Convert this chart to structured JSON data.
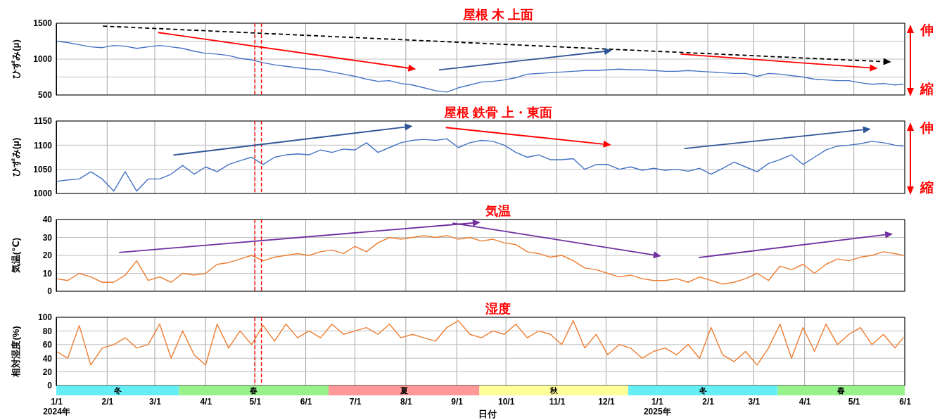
{
  "chart_data": [
    {
      "type": "line",
      "title": "屋根 木 上面",
      "ylabel": "ひずみ(μ)",
      "tick_labels": "y",
      "grid": true,
      "xlim": [
        "2024-01-01",
        "2025-06-01"
      ],
      "xticks": [
        {
          "value": "2024-01-01",
          "label": null
        },
        {
          "value": "2024-02-01",
          "label": null
        },
        {
          "value": "2024-03-01",
          "label": null
        },
        {
          "value": "2024-04-01",
          "label": null
        },
        {
          "value": "2024-05-01",
          "label": null
        },
        {
          "value": "2024-06-01",
          "label": null
        },
        {
          "value": "2024-07-01",
          "label": null
        },
        {
          "value": "2024-08-01",
          "label": null
        },
        {
          "value": "2024-09-01",
          "label": null
        },
        {
          "value": "2024-10-01",
          "label": null
        },
        {
          "value": "2024-11-01",
          "label": null
        },
        {
          "value": "2024-12-01",
          "label": null
        },
        {
          "value": "2025-01-01",
          "label": null
        },
        {
          "value": "2025-02-01",
          "label": null
        },
        {
          "value": "2025-03-01",
          "label": null
        },
        {
          "value": "2025-04-01",
          "label": null
        },
        {
          "value": "2025-05-01",
          "label": null
        },
        {
          "value": "2025-06-01",
          "label": null
        }
      ],
      "ylim": [
        500,
        1500
      ],
      "yticks": [
        500,
        {
          "value": 750,
          "label": null
        },
        1000,
        {
          "value": 1250,
          "label": null
        },
        1500
      ],
      "x": [
        "2024-01-01",
        "2024-01-08",
        "2024-01-15",
        "2024-01-22",
        "2024-01-29",
        "2024-02-05",
        "2024-02-12",
        "2024-02-19",
        "2024-02-26",
        "2024-03-04",
        "2024-03-11",
        "2024-03-18",
        "2024-03-25",
        "2024-04-01",
        "2024-04-08",
        "2024-04-15",
        "2024-04-22",
        "2024-04-29",
        "2024-05-06",
        "2024-05-13",
        "2024-05-20",
        "2024-05-27",
        "2024-06-03",
        "2024-06-10",
        "2024-06-17",
        "2024-06-24",
        "2024-07-01",
        "2024-07-08",
        "2024-07-15",
        "2024-07-22",
        "2024-07-29",
        "2024-08-05",
        "2024-08-12",
        "2024-08-19",
        "2024-08-26",
        "2024-09-02",
        "2024-09-09",
        "2024-09-16",
        "2024-09-23",
        "2024-09-30",
        "2024-10-07",
        "2024-10-14",
        "2024-10-21",
        "2024-10-28",
        "2024-11-04",
        "2024-11-11",
        "2024-11-18",
        "2024-11-25",
        "2024-12-02",
        "2024-12-09",
        "2024-12-16",
        "2024-12-23",
        "2024-12-30",
        "2025-01-06",
        "2025-01-13",
        "2025-01-20",
        "2025-01-27",
        "2025-02-03",
        "2025-02-10",
        "2025-02-17",
        "2025-02-24",
        "2025-03-03",
        "2025-03-10",
        "2025-03-17",
        "2025-03-24",
        "2025-03-31",
        "2025-04-07",
        "2025-04-14",
        "2025-04-21",
        "2025-04-28",
        "2025-05-05",
        "2025-05-12",
        "2025-05-19",
        "2025-05-26",
        "2025-05-31"
      ],
      "series": [
        {
          "color": "#4472c4",
          "values": [
            1250,
            1230,
            1200,
            1170,
            1160,
            1190,
            1180,
            1150,
            1170,
            1190,
            1170,
            1150,
            1110,
            1080,
            1070,
            1050,
            1010,
            990,
            950,
            920,
            900,
            880,
            860,
            850,
            820,
            790,
            760,
            720,
            690,
            700,
            660,
            640,
            600,
            560,
            540,
            600,
            640,
            680,
            690,
            710,
            740,
            790,
            800,
            810,
            820,
            830,
            840,
            840,
            850,
            860,
            850,
            850,
            840,
            830,
            830,
            840,
            830,
            820,
            810,
            800,
            800,
            760,
            800,
            790,
            770,
            750,
            720,
            710,
            700,
            700,
            670,
            650,
            660,
            640,
            650
          ]
        }
      ],
      "ref_lines": [
        {
          "axis": "x",
          "value": "2024-05-01",
          "color": "#ff0000",
          "line_style": "dashed"
        },
        {
          "axis": "x",
          "value": "2024-05-05",
          "color": "#ff0000",
          "line_style": "dashed"
        }
      ],
      "annotations": [
        "伸",
        "縮"
      ]
    },
    {
      "type": "line",
      "title": "屋根 鉄骨 上・東面",
      "ylabel": "ひずみ(μ)",
      "tick_labels": "y",
      "grid": true,
      "xlim": [
        "2024-01-01",
        "2025-06-01"
      ],
      "xticks": [
        {
          "value": "2024-01-01",
          "label": null
        },
        {
          "value": "2024-02-01",
          "label": null
        },
        {
          "value": "2024-03-01",
          "label": null
        },
        {
          "value": "2024-04-01",
          "label": null
        },
        {
          "value": "2024-05-01",
          "label": null
        },
        {
          "value": "2024-06-01",
          "label": null
        },
        {
          "value": "2024-07-01",
          "label": null
        },
        {
          "value": "2024-08-01",
          "label": null
        },
        {
          "value": "2024-09-01",
          "label": null
        },
        {
          "value": "2024-10-01",
          "label": null
        },
        {
          "value": "2024-11-01",
          "label": null
        },
        {
          "value": "2024-12-01",
          "label": null
        },
        {
          "value": "2025-01-01",
          "label": null
        },
        {
          "value": "2025-02-01",
          "label": null
        },
        {
          "value": "2025-03-01",
          "label": null
        },
        {
          "value": "2025-04-01",
          "label": null
        },
        {
          "value": "2025-05-01",
          "label": null
        },
        {
          "value": "2025-06-01",
          "label": null
        }
      ],
      "ylim": [
        1000,
        1150
      ],
      "yticks": [
        1000,
        1050,
        1100,
        1150
      ],
      "x": [
        "2024-01-01",
        "2024-01-08",
        "2024-01-15",
        "2024-01-22",
        "2024-01-29",
        "2024-02-05",
        "2024-02-12",
        "2024-02-19",
        "2024-02-26",
        "2024-03-04",
        "2024-03-11",
        "2024-03-18",
        "2024-03-25",
        "2024-04-01",
        "2024-04-08",
        "2024-04-15",
        "2024-04-22",
        "2024-04-29",
        "2024-05-06",
        "2024-05-13",
        "2024-05-20",
        "2024-05-27",
        "2024-06-03",
        "2024-06-10",
        "2024-06-17",
        "2024-06-24",
        "2024-07-01",
        "2024-07-08",
        "2024-07-15",
        "2024-07-22",
        "2024-07-29",
        "2024-08-05",
        "2024-08-12",
        "2024-08-19",
        "2024-08-26",
        "2024-09-02",
        "2024-09-09",
        "2024-09-16",
        "2024-09-23",
        "2024-09-30",
        "2024-10-07",
        "2024-10-14",
        "2024-10-21",
        "2024-10-28",
        "2024-11-04",
        "2024-11-11",
        "2024-11-18",
        "2024-11-25",
        "2024-12-02",
        "2024-12-09",
        "2024-12-16",
        "2024-12-23",
        "2024-12-30",
        "2025-01-06",
        "2025-01-13",
        "2025-01-20",
        "2025-01-27",
        "2025-02-03",
        "2025-02-10",
        "2025-02-17",
        "2025-02-24",
        "2025-03-03",
        "2025-03-10",
        "2025-03-17",
        "2025-03-24",
        "2025-03-31",
        "2025-04-07",
        "2025-04-14",
        "2025-04-21",
        "2025-04-28",
        "2025-05-05",
        "2025-05-12",
        "2025-05-19",
        "2025-05-26",
        "2025-05-31"
      ],
      "series": [
        {
          "color": "#4472c4",
          "values": [
            1025,
            1028,
            1030,
            1045,
            1030,
            1005,
            1045,
            1005,
            1030,
            1030,
            1040,
            1058,
            1040,
            1055,
            1045,
            1060,
            1068,
            1075,
            1060,
            1075,
            1080,
            1082,
            1080,
            1090,
            1085,
            1092,
            1090,
            1105,
            1085,
            1095,
            1105,
            1110,
            1112,
            1110,
            1113,
            1095,
            1105,
            1110,
            1108,
            1100,
            1085,
            1075,
            1080,
            1070,
            1070,
            1072,
            1050,
            1060,
            1060,
            1050,
            1055,
            1048,
            1052,
            1048,
            1050,
            1046,
            1052,
            1040,
            1052,
            1065,
            1055,
            1045,
            1062,
            1070,
            1080,
            1060,
            1075,
            1090,
            1098,
            1100,
            1103,
            1108,
            1105,
            1100,
            1098
          ]
        }
      ],
      "ref_lines": [
        {
          "axis": "x",
          "value": "2024-05-01",
          "color": "#ff0000",
          "line_style": "dashed"
        },
        {
          "axis": "x",
          "value": "2024-05-05",
          "color": "#ff0000",
          "line_style": "dashed"
        }
      ],
      "annotations": [
        "伸",
        "縮"
      ]
    },
    {
      "type": "line",
      "title": "気温",
      "ylabel": "気温(℃)",
      "tick_labels": "y",
      "grid": true,
      "xlim": [
        "2024-01-01",
        "2025-06-01"
      ],
      "xticks": [
        {
          "value": "2024-01-01",
          "label": null
        },
        {
          "value": "2024-02-01",
          "label": null
        },
        {
          "value": "2024-03-01",
          "label": null
        },
        {
          "value": "2024-04-01",
          "label": null
        },
        {
          "value": "2024-05-01",
          "label": null
        },
        {
          "value": "2024-06-01",
          "label": null
        },
        {
          "value": "2024-07-01",
          "label": null
        },
        {
          "value": "2024-08-01",
          "label": null
        },
        {
          "value": "2024-09-01",
          "label": null
        },
        {
          "value": "2024-10-01",
          "label": null
        },
        {
          "value": "2024-11-01",
          "label": null
        },
        {
          "value": "2024-12-01",
          "label": null
        },
        {
          "value": "2025-01-01",
          "label": null
        },
        {
          "value": "2025-02-01",
          "label": null
        },
        {
          "value": "2025-03-01",
          "label": null
        },
        {
          "value": "2025-04-01",
          "label": null
        },
        {
          "value": "2025-05-01",
          "label": null
        },
        {
          "value": "2025-06-01",
          "label": null
        }
      ],
      "ylim": [
        0,
        40
      ],
      "yticks": [
        0,
        10,
        20,
        30,
        40
      ],
      "x": [
        "2024-01-01",
        "2024-01-08",
        "2024-01-15",
        "2024-01-22",
        "2024-01-29",
        "2024-02-05",
        "2024-02-12",
        "2024-02-19",
        "2024-02-26",
        "2024-03-04",
        "2024-03-11",
        "2024-03-18",
        "2024-03-25",
        "2024-04-01",
        "2024-04-08",
        "2024-04-15",
        "2024-04-22",
        "2024-04-29",
        "2024-05-06",
        "2024-05-13",
        "2024-05-20",
        "2024-05-27",
        "2024-06-03",
        "2024-06-10",
        "2024-06-17",
        "2024-06-24",
        "2024-07-01",
        "2024-07-08",
        "2024-07-15",
        "2024-07-22",
        "2024-07-29",
        "2024-08-05",
        "2024-08-12",
        "2024-08-19",
        "2024-08-26",
        "2024-09-02",
        "2024-09-09",
        "2024-09-16",
        "2024-09-23",
        "2024-09-30",
        "2024-10-07",
        "2024-10-14",
        "2024-10-21",
        "2024-10-28",
        "2024-11-04",
        "2024-11-11",
        "2024-11-18",
        "2024-11-25",
        "2024-12-02",
        "2024-12-09",
        "2024-12-16",
        "2024-12-23",
        "2024-12-30",
        "2025-01-06",
        "2025-01-13",
        "2025-01-20",
        "2025-01-27",
        "2025-02-03",
        "2025-02-10",
        "2025-02-17",
        "2025-02-24",
        "2025-03-03",
        "2025-03-10",
        "2025-03-17",
        "2025-03-24",
        "2025-03-31",
        "2025-04-07",
        "2025-04-14",
        "2025-04-21",
        "2025-04-28",
        "2025-05-05",
        "2025-05-12",
        "2025-05-19",
        "2025-05-26",
        "2025-05-31"
      ],
      "series": [
        {
          "color": "#ed7d31",
          "values": [
            7,
            6,
            10,
            8,
            5,
            5,
            9,
            17,
            6,
            8,
            5,
            10,
            9,
            10,
            15,
            16,
            18,
            20,
            17,
            19,
            20,
            21,
            20,
            22,
            23,
            21,
            25,
            22,
            27,
            30,
            29,
            30,
            31,
            30,
            31,
            29,
            30,
            28,
            29,
            27,
            26,
            22,
            21,
            19,
            20,
            17,
            13,
            12,
            10,
            8,
            9,
            7,
            6,
            6,
            7,
            5,
            8,
            6,
            4,
            5,
            7,
            10,
            6,
            14,
            12,
            15,
            10,
            15,
            18,
            17,
            19,
            20,
            22,
            21,
            20
          ]
        }
      ],
      "ref_lines": [
        {
          "axis": "x",
          "value": "2024-05-01",
          "color": "#ff0000",
          "line_style": "dashed"
        },
        {
          "axis": "x",
          "value": "2024-05-05",
          "color": "#ff0000",
          "line_style": "dashed"
        }
      ]
    },
    {
      "type": "line",
      "title": "湿度",
      "ylabel": "相対湿度(%)",
      "xlabel": "日付",
      "grid": true,
      "xlim": [
        "2024-01-01",
        "2025-06-01"
      ],
      "xticks": [
        {
          "value": "2024-01-01",
          "label": "1/1\n2024年"
        },
        {
          "value": "2024-02-01",
          "label": "2/1"
        },
        {
          "value": "2024-03-01",
          "label": "3/1"
        },
        {
          "value": "2024-04-01",
          "label": "4/1"
        },
        {
          "value": "2024-05-01",
          "label": "5/1"
        },
        {
          "value": "2024-06-01",
          "label": "6/1"
        },
        {
          "value": "2024-07-01",
          "label": "7/1"
        },
        {
          "value": "2024-08-01",
          "label": "8/1"
        },
        {
          "value": "2024-09-01",
          "label": "9/1"
        },
        {
          "value": "2024-10-01",
          "label": "10/1"
        },
        {
          "value": "2024-11-01",
          "label": "11/1"
        },
        {
          "value": "2024-12-01",
          "label": "12/1"
        },
        {
          "value": "2025-01-01",
          "label": "1/1\n2025年"
        },
        {
          "value": "2025-02-01",
          "label": "2/1"
        },
        {
          "value": "2025-03-01",
          "label": "3/1"
        },
        {
          "value": "2025-04-01",
          "label": "4/1"
        },
        {
          "value": "2025-05-01",
          "label": "5/1"
        },
        {
          "value": "2025-06-01",
          "label": "6/1"
        }
      ],
      "ylim": [
        0,
        100
      ],
      "yticks": [
        0,
        20,
        40,
        60,
        80,
        100
      ],
      "x": [
        "2024-01-01",
        "2024-01-08",
        "2024-01-15",
        "2024-01-22",
        "2024-01-29",
        "2024-02-05",
        "2024-02-12",
        "2024-02-19",
        "2024-02-26",
        "2024-03-04",
        "2024-03-11",
        "2024-03-18",
        "2024-03-25",
        "2024-04-01",
        "2024-04-08",
        "2024-04-15",
        "2024-04-22",
        "2024-04-29",
        "2024-05-06",
        "2024-05-13",
        "2024-05-20",
        "2024-05-27",
        "2024-06-03",
        "2024-06-10",
        "2024-06-17",
        "2024-06-24",
        "2024-07-01",
        "2024-07-08",
        "2024-07-15",
        "2024-07-22",
        "2024-07-29",
        "2024-08-05",
        "2024-08-12",
        "2024-08-19",
        "2024-08-26",
        "2024-09-02",
        "2024-09-09",
        "2024-09-16",
        "2024-09-23",
        "2024-09-30",
        "2024-10-07",
        "2024-10-14",
        "2024-10-21",
        "2024-10-28",
        "2024-11-04",
        "2024-11-11",
        "2024-11-18",
        "2024-11-25",
        "2024-12-02",
        "2024-12-09",
        "2024-12-16",
        "2024-12-23",
        "2024-12-30",
        "2025-01-06",
        "2025-01-13",
        "2025-01-20",
        "2025-01-27",
        "2025-02-03",
        "2025-02-10",
        "2025-02-17",
        "2025-02-24",
        "2025-03-03",
        "2025-03-10",
        "2025-03-17",
        "2025-03-24",
        "2025-03-31",
        "2025-04-07",
        "2025-04-14",
        "2025-04-21",
        "2025-04-28",
        "2025-05-05",
        "2025-05-12",
        "2025-05-19",
        "2025-05-26",
        "2025-05-31"
      ],
      "series": [
        {
          "color": "#ed7d31",
          "values": [
            50,
            40,
            88,
            30,
            55,
            60,
            70,
            55,
            60,
            90,
            40,
            80,
            45,
            30,
            90,
            55,
            80,
            60,
            88,
            65,
            90,
            70,
            80,
            70,
            90,
            75,
            80,
            85,
            75,
            90,
            70,
            75,
            70,
            65,
            85,
            95,
            75,
            70,
            80,
            75,
            90,
            70,
            80,
            75,
            60,
            95,
            55,
            75,
            45,
            60,
            55,
            40,
            50,
            55,
            45,
            60,
            40,
            85,
            45,
            35,
            50,
            30,
            55,
            90,
            40,
            85,
            50,
            90,
            60,
            75,
            85,
            60,
            75,
            55,
            70
          ]
        }
      ],
      "ref_lines": [
        {
          "axis": "x",
          "value": "2024-05-01",
          "color": "#ff0000",
          "line_style": "dashed"
        },
        {
          "axis": "x",
          "value": "2024-05-05",
          "color": "#ff0000",
          "line_style": "dashed"
        }
      ],
      "annotations": [
        "冬",
        "春",
        "夏",
        "秋",
        "冬",
        "春"
      ]
    }
  ]
}
